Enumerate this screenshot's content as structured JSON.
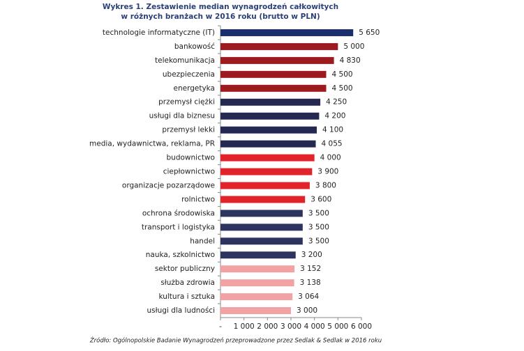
{
  "chart_data": {
    "type": "barh",
    "title": [
      "Wykres 1. Zestawienie median wynagrodzeń całkowitych",
      "w różnych branżach w 2016 roku (brutto w PLN)"
    ],
    "source": "Źródło: Ogólnopolskie Badanie Wynagrodzeń przeprowadzone przez Sedlak & Sedlak w 2016 roku",
    "categories": [
      "technologie informatyczne (IT)",
      "bankowość",
      "telekomunikacja",
      "ubezpieczenia",
      "energetyka",
      "przemysł ciężki",
      "usługi dla biznesu",
      "przemysł lekki",
      "media, wydawnictwa, reklama, PR",
      "budownictwo",
      "ciepłownictwo",
      "organizacje pozarządowe",
      "rolnictwo",
      "ochrona środowiska",
      "transport i logistyka",
      "handel",
      "nauka, szkolnictwo",
      "sektor publiczny",
      "służba zdrowia",
      "kultura i sztuka",
      "usługi dla ludności"
    ],
    "values": [
      5650,
      5000,
      4830,
      4500,
      4500,
      4250,
      4200,
      4100,
      4055,
      4000,
      3900,
      3800,
      3600,
      3500,
      3500,
      3500,
      3200,
      3152,
      3138,
      3064,
      3000
    ],
    "value_labels": [
      "5 650",
      "5 000",
      "4 830",
      "4 500",
      "4 500",
      "4 250",
      "4 200",
      "4 100",
      "4 055",
      "4 000",
      "3 900",
      "3 800",
      "3 600",
      "3 500",
      "3 500",
      "3 500",
      "3 200",
      "3 152",
      "3 138",
      "3 064",
      "3 000"
    ],
    "colors": [
      "#1b2f6e",
      "#9b1b1e",
      "#9b1b1e",
      "#9b1b1e",
      "#9b1b1e",
      "#252850",
      "#252850",
      "#252850",
      "#252850",
      "#e2242a",
      "#e2242a",
      "#e2242a",
      "#e2242a",
      "#2d3460",
      "#2d3460",
      "#2d3460",
      "#2d3460",
      "#f2a2a2",
      "#f2a2a2",
      "#f2a2a2",
      "#f2a2a2"
    ],
    "xlim": [
      0,
      6000
    ],
    "xticks": [
      {
        "value": 0,
        "label": "-"
      },
      {
        "value": 1000,
        "label": "1 000"
      },
      {
        "value": 2000,
        "label": "2 000"
      },
      {
        "value": 3000,
        "label": "3 000"
      },
      {
        "value": 4000,
        "label": "4 000"
      },
      {
        "value": 5000,
        "label": "5 000"
      },
      {
        "value": 6000,
        "label": "6 000"
      }
    ]
  }
}
